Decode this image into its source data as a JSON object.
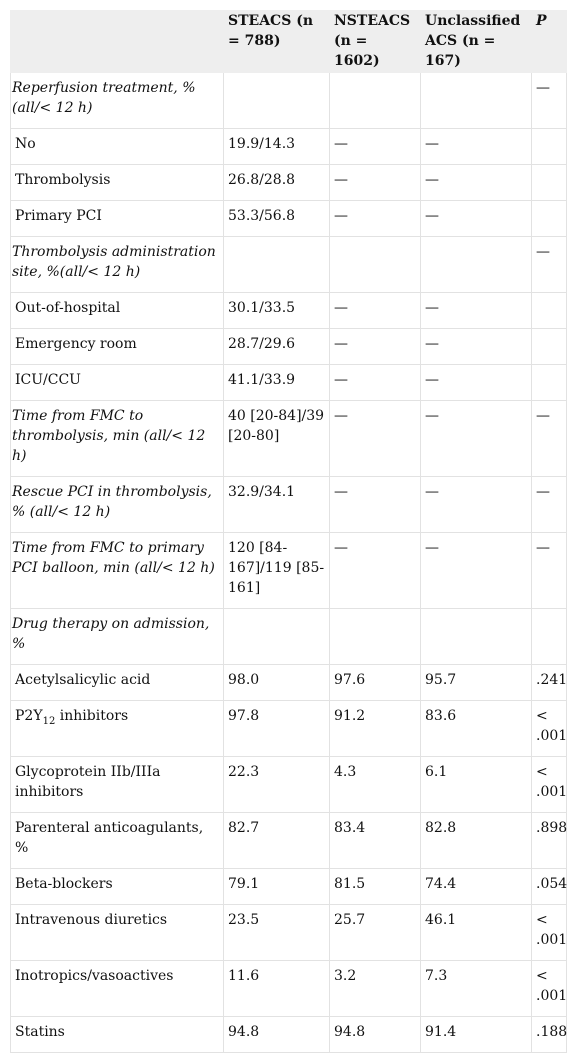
{
  "headers": [
    "",
    "STEACS (n = 788)",
    "NSTEACS (n = 1602)",
    "Unclassified ACS (n = 167)",
    "P"
  ],
  "rows": [
    {
      "type": "section",
      "label": "Reperfusion treatment, % (all/< 12 h)",
      "c1": "",
      "c2": "",
      "c3": "",
      "p": "—"
    },
    {
      "type": "sub",
      "label": "No",
      "c1": "19.9/14.3",
      "c2": "—",
      "c3": "—",
      "p": ""
    },
    {
      "type": "sub",
      "label": "Thrombolysis",
      "c1": "26.8/28.8",
      "c2": "—",
      "c3": "—",
      "p": ""
    },
    {
      "type": "sub",
      "label": "Primary PCI",
      "c1": "53.3/56.8",
      "c2": "—",
      "c3": "—",
      "p": ""
    },
    {
      "type": "section",
      "label": "Thrombolysis administration site, %(all/< 12 h)",
      "c1": "",
      "c2": "",
      "c3": "",
      "p": "—"
    },
    {
      "type": "sub",
      "label": "Out-of-hospital",
      "c1": "30.1/33.5",
      "c2": "—",
      "c3": "—",
      "p": ""
    },
    {
      "type": "sub",
      "label": "Emergency room",
      "c1": "28.7/29.6",
      "c2": "—",
      "c3": "—",
      "p": ""
    },
    {
      "type": "sub",
      "label": "ICU/CCU",
      "c1": "41.1/33.9",
      "c2": "—",
      "c3": "—",
      "p": ""
    },
    {
      "type": "section",
      "label": "Time from FMC to thrombolysis, min (all/< 12 h)",
      "c1": "40 [20-84]/39 [20-80]",
      "c2": "—",
      "c3": "—",
      "p": "—"
    },
    {
      "type": "section",
      "label": "Rescue PCI in thrombolysis, % (all/< 12 h)",
      "c1": "32.9/34.1",
      "c2": "—",
      "c3": "—",
      "p": "—"
    },
    {
      "type": "section",
      "label": "Time from FMC to primary PCI balloon, min (all/< 12 h)",
      "c1": "120 [84-167]/119 [85-161]",
      "c2": "—",
      "c3": "—",
      "p": "—"
    },
    {
      "type": "section",
      "label": "Drug therapy on admission, %",
      "c1": "",
      "c2": "",
      "c3": "",
      "p": ""
    },
    {
      "type": "sub",
      "label": "Acetylsalicylic acid",
      "c1": "98.0",
      "c2": "97.6",
      "c3": "95.7",
      "p": ".241"
    },
    {
      "type": "sub",
      "label": "P2Y",
      "label_sub": "12",
      "label_after": " inhibitors",
      "c1": "97.8",
      "c2": "91.2",
      "c3": "83.6",
      "p": "< .001"
    },
    {
      "type": "sub",
      "label": "Glycoprotein IIb/IIIa inhibitors",
      "c1": "22.3",
      "c2": "4.3",
      "c3": "6.1",
      "p": "< .001"
    },
    {
      "type": "sub",
      "label": "Parenteral anticoagulants, %",
      "c1": "82.7",
      "c2": "83.4",
      "c3": "82.8",
      "p": ".898"
    },
    {
      "type": "sub",
      "label": "Beta-blockers",
      "c1": "79.1",
      "c2": "81.5",
      "c3": "74.4",
      "p": ".054"
    },
    {
      "type": "sub",
      "label": "Intravenous diuretics",
      "c1": "23.5",
      "c2": "25.7",
      "c3": "46.1",
      "p": "< .001"
    },
    {
      "type": "sub",
      "label": "Inotropics/vasoactives",
      "c1": "11.6",
      "c2": "3.2",
      "c3": "7.3",
      "p": "< .001"
    },
    {
      "type": "sub",
      "label": "Statins",
      "c1": "94.8",
      "c2": "94.8",
      "c3": "91.4",
      "p": ".188"
    }
  ]
}
